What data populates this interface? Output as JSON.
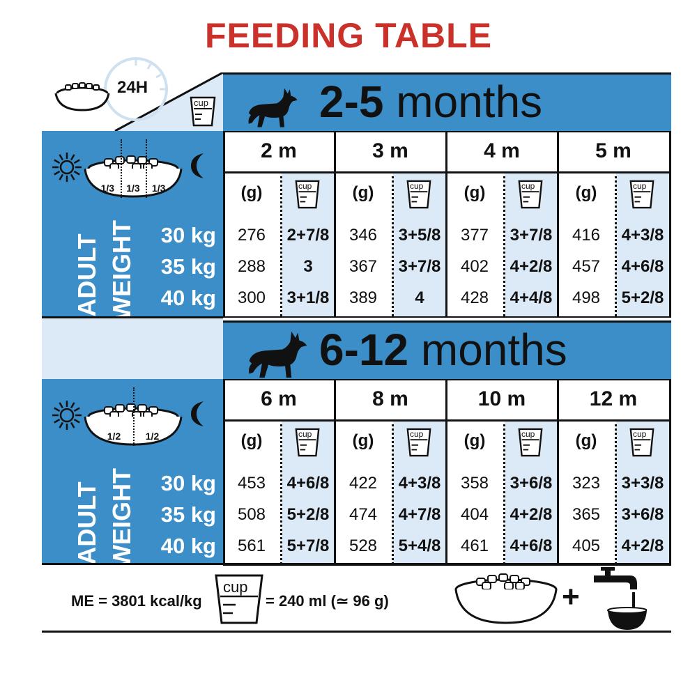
{
  "title": "FEEDING TABLE",
  "top_left": {
    "period": "24H",
    "cup_label": "cup"
  },
  "colors": {
    "title": "#c9312a",
    "blue": "#3b8ec8",
    "pale": "#dce9f6",
    "ink": "#111111"
  },
  "sections": [
    {
      "heading_bold": "2-5",
      "heading_rest": " months",
      "portions": [
        "1/3",
        "1/3",
        "1/3"
      ],
      "weight_label_1": "ADULT",
      "weight_label_2": "WEIGHT",
      "weights": [
        "30 kg",
        "35 kg",
        "40 kg"
      ],
      "unit_g": "(g)",
      "cup_label": "cup",
      "ages": [
        {
          "label": "2 m",
          "grams": [
            "276",
            "288",
            "300"
          ],
          "cups": [
            "2+7/8",
            "3",
            "3+1/8"
          ]
        },
        {
          "label": "3 m",
          "grams": [
            "346",
            "367",
            "389"
          ],
          "cups": [
            "3+5/8",
            "3+7/8",
            "4"
          ]
        },
        {
          "label": "4 m",
          "grams": [
            "377",
            "402",
            "428"
          ],
          "cups": [
            "3+7/8",
            "4+2/8",
            "4+4/8"
          ]
        },
        {
          "label": "5 m",
          "grams": [
            "416",
            "457",
            "498"
          ],
          "cups": [
            "4+3/8",
            "4+6/8",
            "5+2/8"
          ]
        }
      ]
    },
    {
      "heading_bold": "6-12",
      "heading_rest": " months",
      "portions": [
        "1/2",
        "1/2"
      ],
      "weight_label_1": "ADULT",
      "weight_label_2": "WEIGHT",
      "weights": [
        "30 kg",
        "35 kg",
        "40 kg"
      ],
      "unit_g": "(g)",
      "cup_label": "cup",
      "ages": [
        {
          "label": "6 m",
          "grams": [
            "453",
            "508",
            "561"
          ],
          "cups": [
            "4+6/8",
            "5+2/8",
            "5+7/8"
          ]
        },
        {
          "label": "8 m",
          "grams": [
            "422",
            "474",
            "528"
          ],
          "cups": [
            "4+3/8",
            "4+7/8",
            "5+4/8"
          ]
        },
        {
          "label": "10 m",
          "grams": [
            "358",
            "404",
            "461"
          ],
          "cups": [
            "3+6/8",
            "4+2/8",
            "4+6/8"
          ]
        },
        {
          "label": "12 m",
          "grams": [
            "323",
            "365",
            "405"
          ],
          "cups": [
            "3+3/8",
            "3+6/8",
            "4+2/8"
          ]
        }
      ]
    }
  ],
  "footer": {
    "me": "ME = 3801 kcal/kg",
    "cup_label": "cup",
    "cup_eq": "= 240 ml (≃ 96 g)",
    "plus": "+"
  }
}
